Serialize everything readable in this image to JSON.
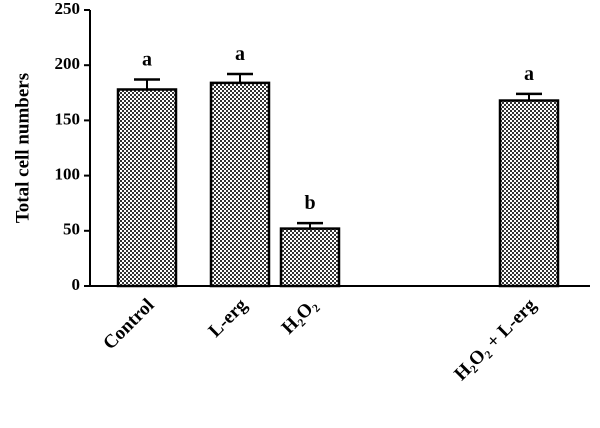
{
  "chart_data": {
    "type": "bar",
    "y_label": "Total cell numbers",
    "categories": [
      "Control",
      "L-erg",
      "H₂O₂",
      "H₂O₂ + L-erg"
    ],
    "values": [
      178,
      184,
      52,
      168
    ],
    "errors": [
      9,
      8,
      5,
      6
    ],
    "significance_labels": [
      "a",
      "a",
      "b",
      "a"
    ],
    "color": "#777777",
    "ylim": [
      0,
      250
    ],
    "yticks": [
      0,
      50,
      100,
      150,
      200,
      250
    ],
    "grid": false
  }
}
